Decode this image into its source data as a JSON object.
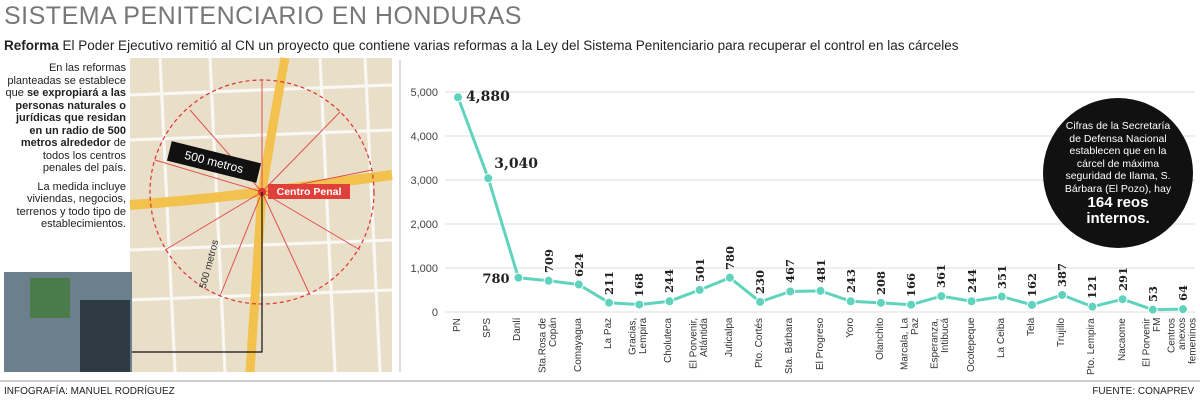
{
  "header": {
    "title": "SISTEMA PENITENCIARIO EN HONDURAS",
    "lead_label": "Reforma",
    "lead_text": "El Poder Ejecutivo remitió al CN un proyecto que contiene varias reformas a la Ley del Sistema Penitenciario para recuperar el control en las cárceles"
  },
  "sidebar": {
    "intro": "En las reformas planteadas se establece que",
    "bold": "se expropiará a las personas naturales o jurídicas que residan en un radio de 500 metros alrededor",
    "rest": "de todos los centros penales del país.",
    "note": "La medida incluye viviendas, negocios, terrenos y todo tipo de establecimientos.",
    "map_radius_label": "500 metros",
    "map_center_label": "Centro Penal",
    "map_radius_label_2": "500 metros"
  },
  "chart_data": {
    "type": "line",
    "color": "#5fd3bd",
    "grid": true,
    "categories": [
      "PN",
      "SPS",
      "Danlí",
      "Sta.Rosa de Copán",
      "Comayagua",
      "La Paz",
      "Gracias, Lempira",
      "Choluteca",
      "El Porvenir, Atlántida",
      "Juticalpa",
      "Pto. Cortés",
      "Sta. Bárbara",
      "El Progreso",
      "Yoro",
      "Olanchito",
      "Marcala, La Paz",
      "Esperanza, Intibucá",
      "Ocotepeque",
      "La Ceiba",
      "Tela",
      "Trujillo",
      "Pto. Lempira",
      "Nacaome",
      "El Porvenir FM",
      "Centros anexos femeninos"
    ],
    "values": [
      4880,
      3040,
      780,
      709,
      624,
      211,
      168,
      244,
      501,
      780,
      230,
      467,
      481,
      243,
      208,
      166,
      361,
      244,
      351,
      162,
      387,
      121,
      291,
      53,
      64
    ],
    "value_labels": [
      "4,880",
      "3,040",
      "780",
      "709",
      "624",
      "211",
      "168",
      "244",
      "501",
      "780",
      "230",
      "467",
      "481",
      "243",
      "208",
      "166",
      "361",
      "244",
      "351",
      "162",
      "387",
      "121",
      "291",
      "53",
      "64"
    ],
    "ylim": [
      0,
      5000
    ],
    "yticks": [
      0,
      {
        "value": 1000,
        "label": "1,000"
      },
      {
        "value": 2000,
        "label": "2,000"
      },
      {
        "value": 3000,
        "label": "3,000"
      },
      {
        "value": 4000,
        "label": "4,000"
      },
      {
        "value": 5000,
        "label": "5,000"
      }
    ],
    "annotation": {
      "text": "Cifras de la Secretaría de Defensa Nacional establecen que en la cárcel de máxima seguridad de Ilama, S. Bárbara (El Pozo), hay",
      "highlight": "164 reos internos."
    }
  },
  "footer": {
    "credit": "INFOGRAFÍA: MANUEL RODRÍGUEZ",
    "source": "FUENTE: CONAPREV"
  }
}
